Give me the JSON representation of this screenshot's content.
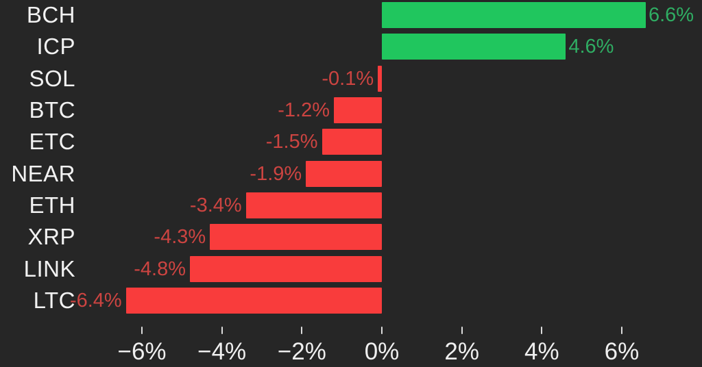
{
  "chart_data": {
    "type": "bar",
    "orientation": "horizontal",
    "title": "",
    "xlabel": "",
    "ylabel": "",
    "grid": false,
    "legend": false,
    "categories": [
      "BCH",
      "ICP",
      "SOL",
      "BTC",
      "ETC",
      "NEAR",
      "ETH",
      "XRP",
      "LINK",
      "LTC"
    ],
    "values": [
      6.6,
      4.6,
      -0.1,
      -1.2,
      -1.5,
      -1.9,
      -3.4,
      -4.3,
      -4.8,
      -6.4
    ],
    "value_labels": [
      "6.6%",
      "4.6%",
      "-0.1%",
      "-1.2%",
      "-1.5%",
      "-1.9%",
      "-3.4%",
      "-4.3%",
      "-4.8%",
      "-6.4%"
    ],
    "x_ticks": [
      {
        "value": -6,
        "label": "−6%"
      },
      {
        "value": -4,
        "label": "−4%"
      },
      {
        "value": -2,
        "label": "−2%"
      },
      {
        "value": 0,
        "label": "0%"
      },
      {
        "value": 2,
        "label": "2%"
      },
      {
        "value": 4,
        "label": "4%"
      },
      {
        "value": 6,
        "label": "6%"
      }
    ],
    "xlim": [
      -9.5,
      8
    ],
    "colors": {
      "background": "#262626",
      "positive_bar": "#20c65e",
      "negative_bar": "#f93c3c",
      "positive_value_label": "#2fad63",
      "negative_value_label": "#cc4441",
      "category_label": "#f2f2f2",
      "axis_tick_label": "#efefef",
      "axis_tick_mark": "#dcdcdc"
    }
  }
}
